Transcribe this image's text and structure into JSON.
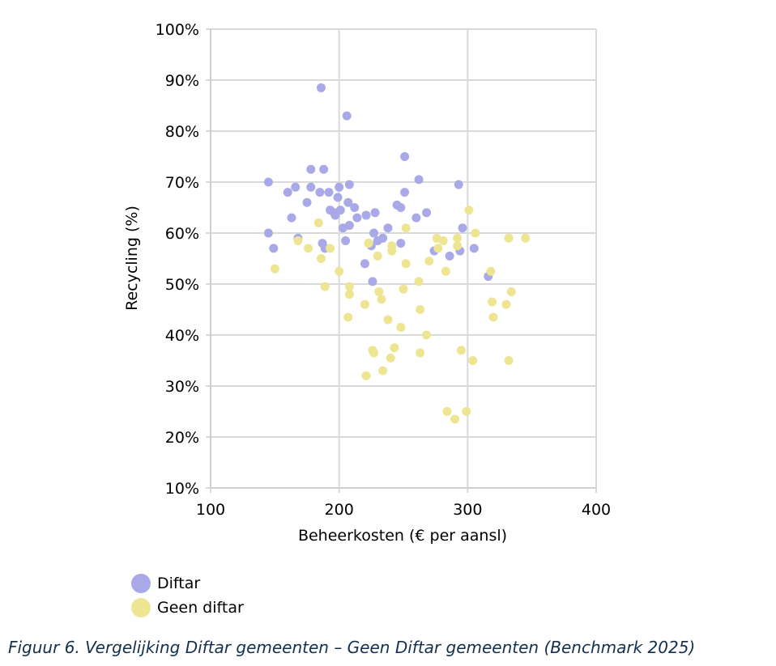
{
  "chart_data": {
    "type": "scatter",
    "title": "",
    "xlabel": "Beheerkosten (€ per aansl)",
    "ylabel": "Recycling (%)",
    "xlim": [
      100,
      400
    ],
    "ylim": [
      10,
      100
    ],
    "x_ticks": [
      "100",
      "200",
      "300",
      "400"
    ],
    "y_ticks": [
      "10%",
      "20%",
      "30%",
      "40%",
      "50%",
      "60%",
      "70%",
      "80%",
      "90%",
      "100%"
    ],
    "grid": true,
    "legend_position": "bottom-left",
    "series": [
      {
        "name": "Diftar",
        "color": "#a9a9e8",
        "points": [
          [
            145,
            70
          ],
          [
            145,
            60
          ],
          [
            149,
            57
          ],
          [
            160,
            68
          ],
          [
            163,
            63
          ],
          [
            166,
            69
          ],
          [
            168,
            59
          ],
          [
            175,
            66
          ],
          [
            178,
            72.5
          ],
          [
            178,
            69
          ],
          [
            185,
            68
          ],
          [
            186,
            88.5
          ],
          [
            187,
            58
          ],
          [
            188,
            72.5
          ],
          [
            189,
            57
          ],
          [
            192,
            68
          ],
          [
            193,
            64.5
          ],
          [
            196,
            64
          ],
          [
            197,
            63.5
          ],
          [
            199,
            67
          ],
          [
            200,
            69
          ],
          [
            201,
            64.5
          ],
          [
            203,
            61
          ],
          [
            205,
            58.5
          ],
          [
            206,
            83
          ],
          [
            207,
            66
          ],
          [
            208,
            69.5
          ],
          [
            208,
            61.5
          ],
          [
            212,
            65
          ],
          [
            214,
            63
          ],
          [
            220,
            54
          ],
          [
            221,
            63.5
          ],
          [
            223,
            58
          ],
          [
            225,
            57.5
          ],
          [
            226,
            50.5
          ],
          [
            227,
            60
          ],
          [
            228,
            64
          ],
          [
            230,
            58.5
          ],
          [
            234,
            59
          ],
          [
            238,
            61
          ],
          [
            245,
            65.5
          ],
          [
            248,
            65
          ],
          [
            248,
            58
          ],
          [
            251,
            75
          ],
          [
            251,
            68
          ],
          [
            260,
            63
          ],
          [
            262,
            70.5
          ],
          [
            268,
            64
          ],
          [
            274,
            56.5
          ],
          [
            286,
            55.5
          ],
          [
            293,
            69.5
          ],
          [
            294,
            56.5
          ],
          [
            296,
            61
          ],
          [
            305,
            57
          ],
          [
            316,
            51.5
          ]
        ]
      },
      {
        "name": "Geen diftar",
        "color": "#eee592",
        "points": [
          [
            150,
            53
          ],
          [
            168,
            58.5
          ],
          [
            176,
            57
          ],
          [
            184,
            62
          ],
          [
            186,
            55
          ],
          [
            189,
            49.5
          ],
          [
            193,
            57
          ],
          [
            200,
            52.5
          ],
          [
            207,
            43.5
          ],
          [
            208,
            49.5
          ],
          [
            208,
            48
          ],
          [
            220,
            46
          ],
          [
            221,
            32
          ],
          [
            223,
            58
          ],
          [
            226,
            37
          ],
          [
            227,
            36.5
          ],
          [
            230,
            55.5
          ],
          [
            231,
            48.5
          ],
          [
            233,
            47
          ],
          [
            234,
            33
          ],
          [
            238,
            43
          ],
          [
            240,
            35.5
          ],
          [
            241,
            57.5
          ],
          [
            241,
            56.5
          ],
          [
            243,
            37.5
          ],
          [
            248,
            41.5
          ],
          [
            250,
            49
          ],
          [
            252,
            54
          ],
          [
            252,
            61
          ],
          [
            262,
            50.5
          ],
          [
            263,
            45
          ],
          [
            263,
            36.5
          ],
          [
            268,
            40
          ],
          [
            270,
            54.5
          ],
          [
            276,
            59
          ],
          [
            277,
            57
          ],
          [
            281,
            58.5
          ],
          [
            283,
            52.5
          ],
          [
            284,
            25
          ],
          [
            290,
            23.5
          ],
          [
            292,
            59
          ],
          [
            292,
            57.5
          ],
          [
            295,
            37
          ],
          [
            299,
            25
          ],
          [
            301,
            64.5
          ],
          [
            304,
            35
          ],
          [
            306,
            60
          ],
          [
            318,
            52.5
          ],
          [
            319,
            46.5
          ],
          [
            320,
            43.5
          ],
          [
            330,
            46
          ],
          [
            332,
            35
          ],
          [
            332,
            59
          ],
          [
            334,
            48.5
          ],
          [
            345,
            59
          ]
        ]
      }
    ]
  },
  "legend": {
    "items": [
      "Diftar",
      "Geen diftar"
    ]
  },
  "caption": "Figuur 6. Vergelijking Diftar gemeenten – Geen Diftar gemeenten (Benchmark 2025)"
}
